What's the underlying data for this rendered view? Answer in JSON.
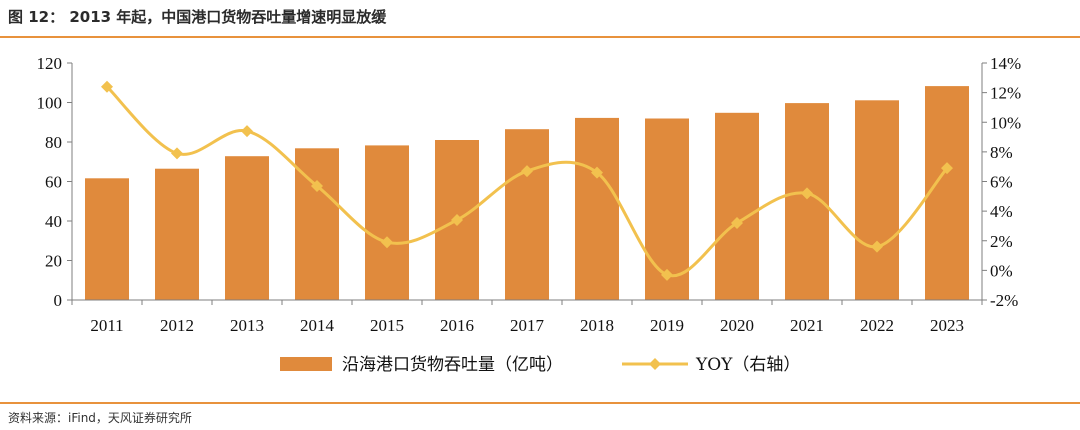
{
  "header": {
    "title": "图 12： 2013 年起，中国港口货物吞吐量增速明显放缓"
  },
  "footer": {
    "source": "资料来源：iFind，天风证券研究所"
  },
  "colors": {
    "bar": "#e08a3c",
    "line": "#f2c14e",
    "rule": "#e8923c"
  },
  "chart_data": {
    "type": "bar+line",
    "categories": [
      "2011",
      "2012",
      "2013",
      "2014",
      "2015",
      "2016",
      "2017",
      "2018",
      "2019",
      "2020",
      "2021",
      "2022",
      "2023"
    ],
    "series": [
      {
        "name": "沿海港口货物吞吐量（亿吨）",
        "type": "bar",
        "axis": "left",
        "values": [
          61.6,
          66.5,
          72.8,
          76.8,
          78.3,
          81.0,
          86.5,
          92.2,
          91.9,
          94.8,
          99.7,
          101.1,
          108.3
        ]
      },
      {
        "name": "YOY（右轴）",
        "type": "line",
        "axis": "right",
        "unit": "%",
        "values": [
          12.4,
          7.9,
          9.4,
          5.7,
          1.9,
          3.4,
          6.7,
          6.6,
          -0.3,
          3.2,
          5.2,
          1.6,
          6.9
        ]
      }
    ],
    "y_left": {
      "min": 0,
      "max": 120,
      "ticks": [
        "0",
        "20",
        "40",
        "60",
        "80",
        "100",
        "120"
      ]
    },
    "y_right": {
      "min": -2,
      "max": 14,
      "ticks": [
        "-2%",
        "0%",
        "2%",
        "4%",
        "6%",
        "8%",
        "10%",
        "12%",
        "14%"
      ]
    },
    "legend": {
      "position": "bottom",
      "bar_label": "沿海港口货物吞吐量（亿吨）",
      "line_label": "YOY（右轴）"
    },
    "grid": false
  }
}
